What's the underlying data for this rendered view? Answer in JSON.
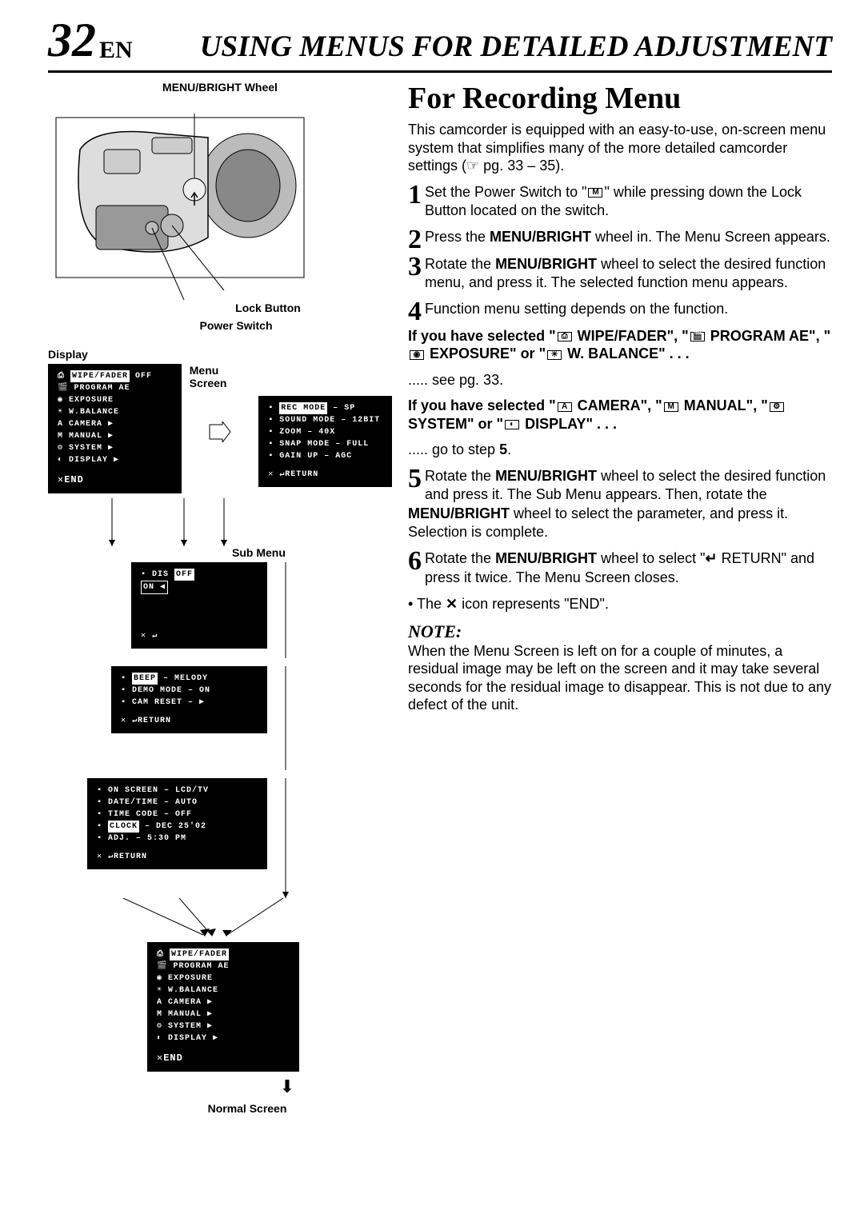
{
  "header": {
    "page_num": "32",
    "lang": "EN",
    "section": "USING MENUS FOR DETAILED ADJUSTMENT"
  },
  "left": {
    "wheel_label": "MENU/BRIGHT Wheel",
    "lock_label": "Lock Button",
    "power_label": "Power Switch",
    "display_label": "Display",
    "menu_screen_label": "Menu Screen",
    "sub_menu_label": "Sub Menu",
    "normal_screen_label": "Normal Screen"
  },
  "display_menu": {
    "items": [
      {
        "icon": "⎙",
        "label": "WIPE/FADER",
        "value": "OFF",
        "selected": true
      },
      {
        "icon": "🎬",
        "label": "PROGRAM AE"
      },
      {
        "icon": "◉",
        "label": "EXPOSURE"
      },
      {
        "icon": "☀",
        "label": "W.BALANCE"
      },
      {
        "icon": "A",
        "label": "CAMERA",
        "value": "▶"
      },
      {
        "icon": "M",
        "label": "MANUAL",
        "value": "▶"
      },
      {
        "icon": "⚙",
        "label": "SYSTEM",
        "value": "▶"
      },
      {
        "icon": "◐",
        "label": "DISPLAY",
        "value": "▶"
      }
    ],
    "end": "✕END"
  },
  "menu_screen": {
    "items": [
      {
        "label": "REC MODE",
        "value": "SP",
        "selected": true
      },
      {
        "label": "SOUND MODE",
        "value": "12BIT"
      },
      {
        "label": "ZOOM",
        "value": "40X"
      },
      {
        "label": "SNAP MODE",
        "value": "FULL"
      },
      {
        "label": "GAIN UP",
        "value": "AGC"
      }
    ],
    "return": "RETURN"
  },
  "sub_menu1": {
    "items": [
      {
        "label": "DIS",
        "opts": [
          "OFF",
          "ON ◀"
        ],
        "sel": 0
      }
    ],
    "return": "↵"
  },
  "sub_menu2": {
    "items": [
      {
        "label": "BEEP",
        "value": "MELODY",
        "selected": true
      },
      {
        "label": "DEMO MODE",
        "value": "ON"
      },
      {
        "label": "CAM RESET",
        "value": "▶"
      }
    ],
    "return": "RETURN"
  },
  "sub_menu3": {
    "items": [
      {
        "label": "ON SCREEN",
        "value": "LCD/TV"
      },
      {
        "label": "DATE/TIME",
        "value": "AUTO"
      },
      {
        "label": "TIME CODE",
        "value": "OFF"
      },
      {
        "label": "CLOCK",
        "value": "DEC 25'02",
        "selected": true
      },
      {
        "label": "  ADJ.",
        "value": "5:30 PM"
      }
    ],
    "return": "RETURN"
  },
  "final_menu": {
    "items": [
      {
        "icon": "⎙",
        "label": "WIPE/FADER",
        "selected": true
      },
      {
        "icon": "🎬",
        "label": "PROGRAM AE"
      },
      {
        "icon": "◉",
        "label": "EXPOSURE"
      },
      {
        "icon": "☀",
        "label": "W.BALANCE"
      },
      {
        "icon": "A",
        "label": "CAMERA",
        "value": "▶"
      },
      {
        "icon": "M",
        "label": "MANUAL",
        "value": "▶"
      },
      {
        "icon": "⚙",
        "label": "SYSTEM",
        "value": "▶"
      },
      {
        "icon": "◐",
        "label": "DISPLAY",
        "value": "▶"
      }
    ],
    "end": "✕END"
  },
  "right": {
    "heading": "For Recording Menu",
    "intro": "This camcorder is equipped with an easy-to-use, on-screen menu system that simplifies many of the more detailed camcorder settings (☞ pg. 33 – 35).",
    "steps": {
      "1a": "Set the Power Switch to \"",
      "1b": "\" while pressing down the Lock Button located on the switch.",
      "2a": "Press the ",
      "2wheel": "MENU/BRIGHT",
      "2b": " wheel in. The Menu Screen appears.",
      "3a": "Rotate the ",
      "3wheel": "MENU/BRIGHT",
      "3b": " wheel to select the desired function menu, and press it. The selected function menu appears.",
      "4": "Function menu setting depends on the function.",
      "sel1a": "If you have selected \"",
      "sel1b": " WIPE/FADER\", \"",
      "sel1c": " PROGRAM AE\", \"",
      "sel1d": " EXPOSURE\" or \"",
      "sel1e": " W. BALANCE\" . . .",
      "sel1go": "..... see pg. 33.",
      "sel2a": "If you have selected \"",
      "sel2b": " CAMERA\", \"",
      "sel2c": " MANUAL\", \"",
      "sel2d": " SYSTEM\" or \"",
      "sel2e": " DISPLAY\" . . .",
      "sel2go": "..... go to step ",
      "sel2step": "5",
      "sel2end": ".",
      "5a": "Rotate the ",
      "5wheel": "MENU/BRIGHT",
      "5b": " wheel to select the desired function and press it. The Sub Menu appears. Then, rotate the ",
      "5wheel2": "MENU/BRIGHT",
      "5c": " wheel to select the parameter, and press it. Selection is complete.",
      "6a": "Rotate the ",
      "6wheel": "MENU/BRIGHT",
      "6b": " wheel to select \"",
      "6ret": " RETURN\" and press it twice. The Menu Screen closes.",
      "6bullet_a": "• The ",
      "6bullet_b": " icon represents \"END\"."
    },
    "note_head": "NOTE:",
    "note": "When the Menu Screen is left on for a couple of minutes, a residual image may be left on the screen and it may take several seconds for the residual image to disappear. This is not due to any defect of the unit."
  }
}
